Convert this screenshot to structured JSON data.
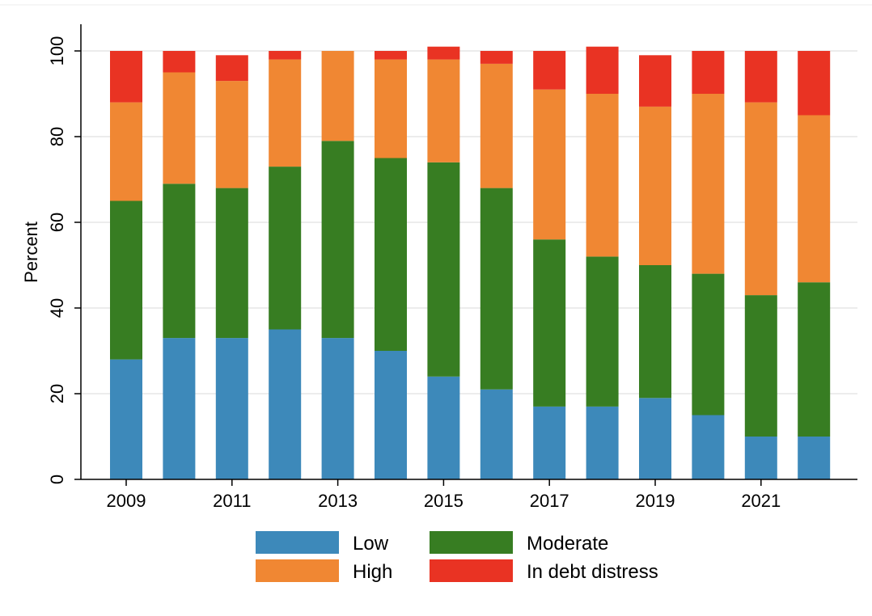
{
  "chart_data": {
    "type": "bar",
    "stacked": true,
    "title": "",
    "xlabel": "",
    "ylabel": "Percent",
    "ylim": [
      0,
      100
    ],
    "yticks": [
      "0",
      "20",
      "40",
      "60",
      "80",
      "100"
    ],
    "xticks": [
      "2009",
      "2011",
      "2013",
      "2015",
      "2017",
      "2019",
      "2021"
    ],
    "categories": [
      "2009",
      "2010",
      "2011",
      "2012",
      "2013",
      "2014",
      "2015",
      "2016",
      "2017",
      "2018",
      "2019",
      "2020",
      "2021",
      "2022"
    ],
    "grid": true,
    "legend_position": "bottom",
    "series": [
      {
        "name": "Low",
        "color": "#3D89BA",
        "values": [
          28,
          33,
          33,
          35,
          33,
          30,
          24,
          21,
          17,
          17,
          19,
          15,
          10,
          10
        ]
      },
      {
        "name": "Moderate",
        "color": "#377D22",
        "values": [
          37,
          36,
          35,
          38,
          46,
          45,
          50,
          47,
          39,
          35,
          31,
          33,
          33,
          36
        ]
      },
      {
        "name": "High",
        "color": "#F08733",
        "values": [
          23,
          26,
          25,
          25,
          21,
          23,
          24,
          29,
          35,
          38,
          37,
          42,
          45,
          39
        ]
      },
      {
        "name": "In debt distress",
        "color": "#E93323",
        "values": [
          12,
          5,
          6,
          2,
          0,
          2,
          3,
          3,
          9,
          11,
          12,
          10,
          12,
          15
        ]
      }
    ]
  }
}
